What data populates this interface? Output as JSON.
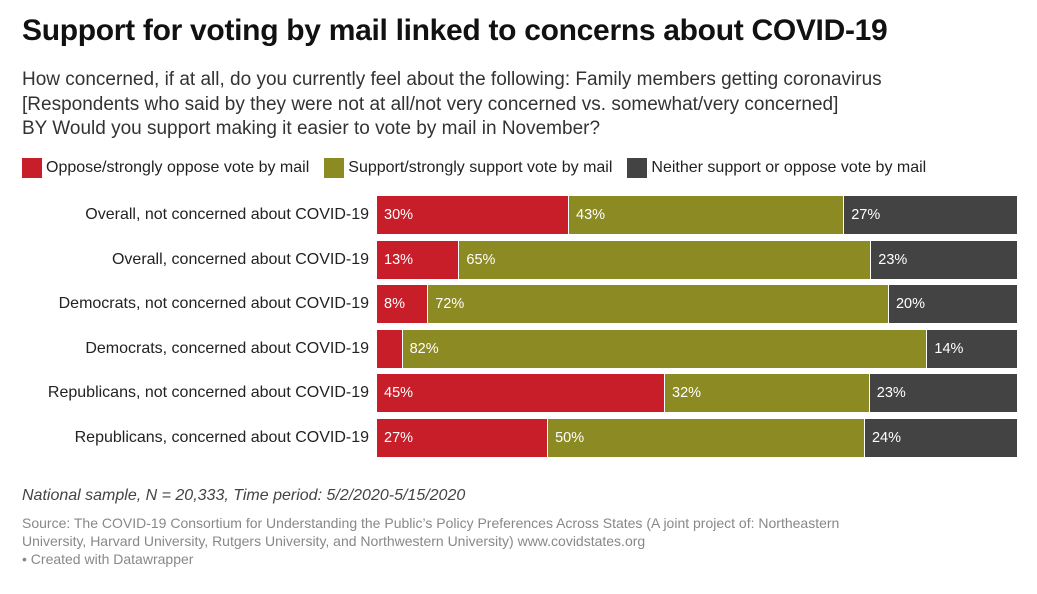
{
  "title": "Support for voting by mail linked to concerns about COVID-19",
  "subtitle_lines": [
    "How concerned, if at all, do you currently feel about the following: Family members getting coronavirus",
    "[Respondents who said by they were not at all/not very concerned vs. somewhat/very concerned]",
    "BY Would you support making it easier to vote by mail in November?"
  ],
  "notes": "National sample, N = 20,333, Time period: 5/2/2020-5/15/2020",
  "source_lines": [
    "Source: The COVID-19 Consortium for Understanding the Public’s Policy Preferences Across States (A joint project of: Northeastern",
    "University, Harvard University, Rutgers University, and Northwestern University) www.covidstates.org",
    "• Created with Datawrapper"
  ],
  "chart_data": {
    "type": "bar",
    "orientation": "horizontal",
    "stacked": true,
    "unit": "%",
    "xlim": [
      0,
      100
    ],
    "legend_placement": "top",
    "grid": false,
    "categories": [
      "Overall, not concerned about COVID-19",
      "Overall, concerned about COVID-19",
      "Democrats, not concerned about COVID-19",
      "Democrats, concerned about COVID-19",
      "Republicans, not concerned about COVID-19",
      "Republicans, concerned about COVID-19"
    ],
    "series": [
      {
        "name": "Oppose/strongly oppose vote by mail",
        "color": "#c71e29",
        "values": [
          30,
          13,
          8,
          4,
          45,
          27
        ],
        "labels": [
          "30%",
          "13%",
          "8%",
          "",
          "45%",
          "27%"
        ]
      },
      {
        "name": "Support/strongly support vote by mail",
        "color": "#8c8a23",
        "values": [
          43,
          65,
          72,
          82,
          32,
          50
        ],
        "labels": [
          "43%",
          "65%",
          "72%",
          "82%",
          "32%",
          "50%"
        ]
      },
      {
        "name": "Neither support or oppose vote by mail",
        "color": "#434343",
        "values": [
          27,
          23,
          20,
          14,
          23,
          24
        ],
        "labels": [
          "27%",
          "23%",
          "20%",
          "14%",
          "23%",
          "24%"
        ]
      }
    ]
  }
}
